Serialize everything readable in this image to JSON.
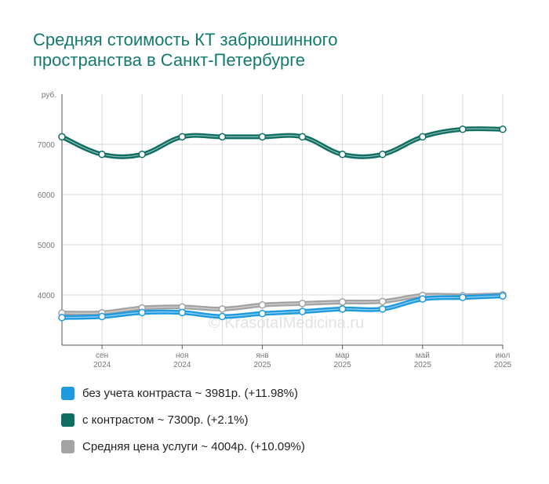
{
  "title_lines": [
    "Средняя стоимость КТ забрюшинного",
    "пространства в Санкт-Петербурге"
  ],
  "watermark": "© KrasotaIMedicina.ru",
  "colors": {
    "title": "#137a6e",
    "grid": "#d9d9d9",
    "axis": "#555555",
    "tick_text": "#777777"
  },
  "legend": [
    {
      "label": "без учета контраста ~ 3981р. (+11.98%)",
      "color": "#1e9be0"
    },
    {
      "label": "с контрастом ~ 7300р. (+2.1%)",
      "color": "#0f6e62"
    },
    {
      "label": "Средняя цена услуги ~ 4004р. (+10.09%)",
      "color": "#a3a3a3"
    }
  ],
  "chart_data": {
    "type": "line",
    "ylabel": "руб.",
    "ylim": [
      3000,
      8000
    ],
    "yticks": [
      4000,
      5000,
      6000,
      7000
    ],
    "x_labels": [
      {
        "month": "сен",
        "year": "2024"
      },
      {
        "month": "ноя",
        "year": "2024"
      },
      {
        "month": "янв",
        "year": "2025"
      },
      {
        "month": "мар",
        "year": "2025"
      },
      {
        "month": "май",
        "year": "2025"
      },
      {
        "month": "июл",
        "year": "2025"
      }
    ],
    "categories": [
      "2024-08",
      "2024-09",
      "2024-10",
      "2024-11",
      "2024-12",
      "2025-01",
      "2025-02",
      "2025-03",
      "2025-04",
      "2025-05",
      "2025-06",
      "2025-07"
    ],
    "series": [
      {
        "name": "Средняя цена услуги",
        "color": "#a3a3a3",
        "values": [
          3640,
          3645,
          3740,
          3760,
          3720,
          3800,
          3830,
          3860,
          3870,
          3990,
          3985,
          4004
        ]
      },
      {
        "name": "без учета контраста",
        "color": "#1e9be0",
        "values": [
          3550,
          3570,
          3650,
          3650,
          3570,
          3630,
          3670,
          3720,
          3720,
          3920,
          3950,
          3981
        ]
      },
      {
        "name": "с контрастом",
        "color": "#0f6e62",
        "values": [
          7150,
          6800,
          6800,
          7150,
          7150,
          7150,
          7150,
          6800,
          6800,
          7150,
          7300,
          7300
        ]
      }
    ],
    "grid": true
  }
}
